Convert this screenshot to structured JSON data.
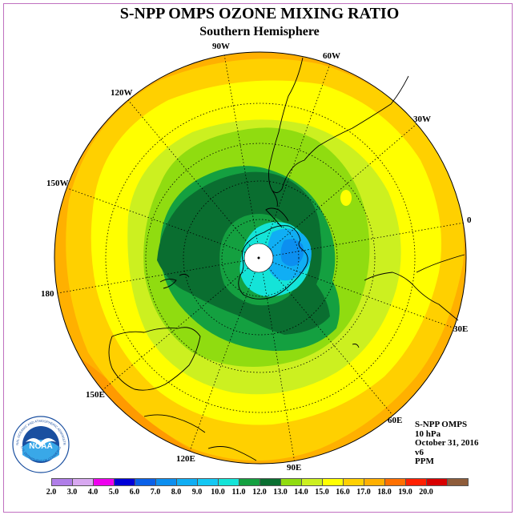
{
  "title": "S-NPP OMPS OZONE MIXING RATIO",
  "subtitle": "Southern Hemisphere",
  "longitude_labels": {
    "lon_90W": "90W",
    "lon_60W": "60W",
    "lon_30W": "30W",
    "lon_0": "0",
    "lon_30E": "30E",
    "lon_60E": "60E",
    "lon_90E": "90E",
    "lon_120E": "120E",
    "lon_150E": "150E",
    "lon_180": "180",
    "lon_150W": "150W",
    "lon_120W": "120W"
  },
  "info": {
    "instrument": "S-NPP OMPS",
    "level": "10 hPa",
    "date": "October 31, 2016",
    "version": "v6",
    "units": "PPM"
  },
  "logo": {
    "text": "NOAA",
    "ring_text": "NATIONAL OCEANIC AND ATMOSPHERIC ADMINISTRATION",
    "ring_text_bottom": "U.S. DEPARTMENT OF COMMERCE"
  },
  "colorbar": {
    "labels": [
      "2.0",
      "3.0",
      "4.0",
      "5.0",
      "6.0",
      "7.0",
      "8.0",
      "9.0",
      "10.0",
      "11.0",
      "12.0",
      "13.0",
      "14.0",
      "15.0",
      "16.0",
      "17.0",
      "18.0",
      "19.0",
      "20.0"
    ],
    "colors": [
      "#b07ee8",
      "#d8a8f0",
      "#ee00ee",
      "#0000d8",
      "#0a60e8",
      "#0c8ff0",
      "#10aef4",
      "#14c8f4",
      "#14e4d8",
      "#14a040",
      "#0a6e30",
      "#90dc10",
      "#ccf020",
      "#ffff00",
      "#ffd000",
      "#ffb000",
      "#ff7000",
      "#ff2000",
      "#d80000",
      "#8e5c3a"
    ]
  },
  "legend_colors": {
    "outer_yellow_orange": "#fbbf10",
    "yellow": "#ffff00",
    "lime": "#ccf020",
    "green_light": "#90dc10",
    "green": "#14a040",
    "dark_green": "#0a6e30",
    "cyan": "#14e4d8",
    "blue": "#10aef4"
  }
}
